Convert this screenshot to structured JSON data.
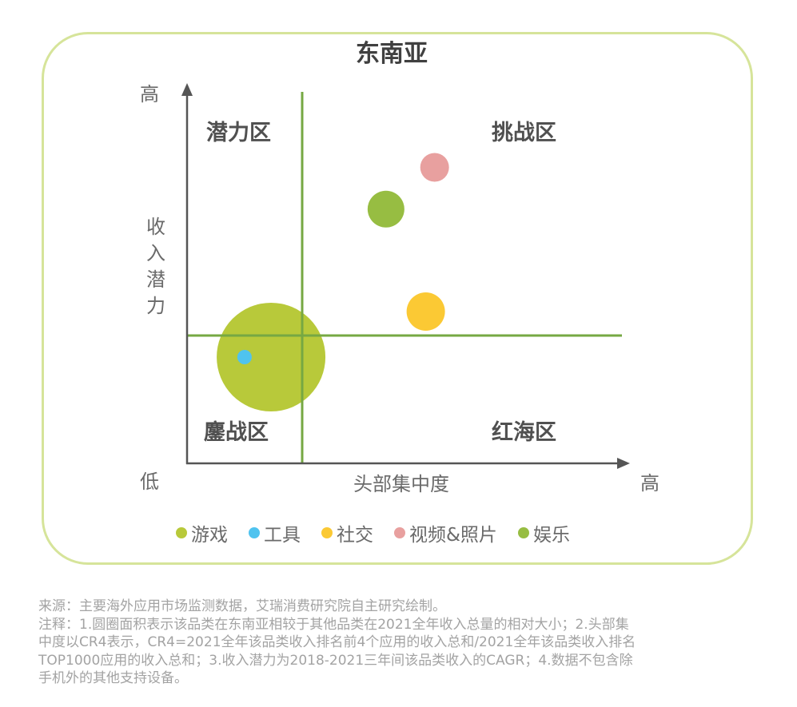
{
  "chart_data": {
    "type": "bubble",
    "title": "东南亚",
    "xlabel": "头部集中度",
    "ylabel": "收入潜力",
    "x_axis_ends": {
      "low": "低",
      "high": "高"
    },
    "y_axis_ends": {
      "low": "低",
      "high": "高"
    },
    "xlim": [
      0,
      100
    ],
    "ylim": [
      0,
      100
    ],
    "quadrant_dividers": {
      "x": 26,
      "y": 34
    },
    "quadrants": {
      "top_left": "潜力区",
      "top_right": "挑战区",
      "bottom_left": "鏖战区",
      "bottom_right": "红海区"
    },
    "grid": false,
    "legend_position": "bottom",
    "series": [
      {
        "name": "游戏",
        "x": 19,
        "y": 28,
        "size": 68,
        "color": "#b8c93a"
      },
      {
        "name": "工具",
        "x": 13,
        "y": 28,
        "size": 9,
        "color": "#4fc3ef"
      },
      {
        "name": "社交",
        "x": 54,
        "y": 40,
        "size": 24,
        "color": "#fbc934"
      },
      {
        "name": "视频&照片",
        "x": 56,
        "y": 78,
        "size": 18,
        "color": "#e8a09f"
      },
      {
        "name": "娱乐",
        "x": 45,
        "y": 67,
        "size": 23,
        "color": "#97bd42"
      }
    ]
  },
  "colors": {
    "frame_border": "#d6e49a",
    "divider": "#76a843",
    "axis": "#555555"
  },
  "footnote": {
    "lines": [
      "来源：主要海外应用市场监测数据，艾瑞消费研究院自主研究绘制。",
      "注释：1.圆圈面积表示该品类在东南亚相较于其他品类在2021全年收入总量的相对大小；2.头部集",
      "中度以CR4表示，CR4=2021全年该品类收入排名前4个应用的收入总和/2021全年该品类收入排名",
      "TOP1000应用的收入总和；3.收入潜力为2018-2021三年间该品类收入的CAGR；4.数据不包含除",
      "手机外的其他支持设备。"
    ]
  }
}
